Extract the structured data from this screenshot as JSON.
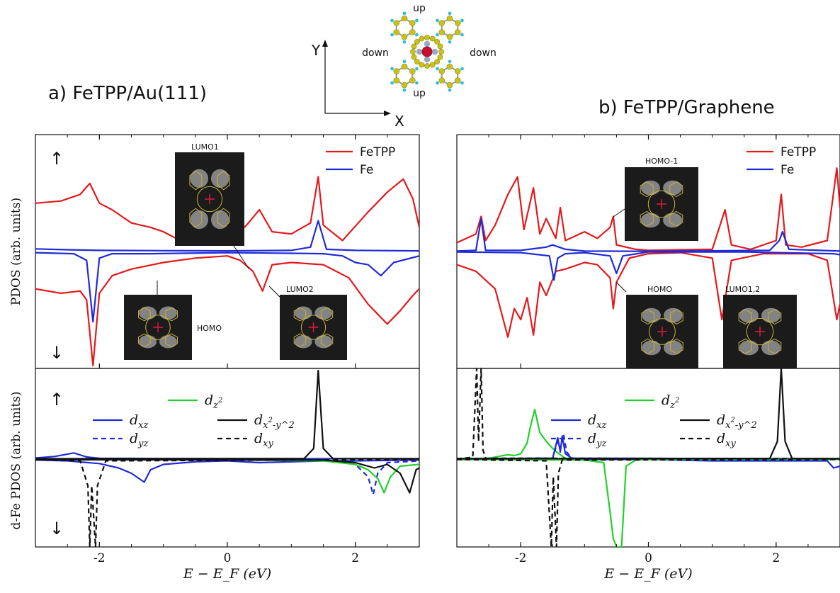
{
  "figure": {
    "molecule_labels": {
      "up_top": "up",
      "up_bottom": "up",
      "down_left": "down",
      "down_right": "down",
      "axis_y": "Y",
      "axis_x": "X"
    },
    "panels": [
      {
        "id": "a",
        "title": "a) FeTPP/Au(111)"
      },
      {
        "id": "b",
        "title": "b) FeTPP/Graphene"
      }
    ]
  },
  "chart_data": [
    {
      "type": "line",
      "panel": "a",
      "title": "a) FeTPP/Au(111)",
      "xlabel": "E − E_F (eV)",
      "ylabel_top": "PDOS (arb. units)",
      "ylabel_bottom": "d-Fe PDOS (arb. units)",
      "xlim": [
        -3,
        3
      ],
      "xticks": [
        "-2",
        "0",
        "2"
      ],
      "spin_labels": {
        "up": "↑",
        "down": "↓"
      },
      "insets": [
        "LUMO1",
        "HOMO",
        "LUMO2"
      ],
      "top": {
        "legend": {
          "position": "top-right",
          "entries": [
            "FeTPP",
            "Fe"
          ]
        },
        "series": [
          {
            "name": "FeTPP",
            "spin": "up",
            "color": "#e31a1c",
            "x": [
              -3,
              -2.6,
              -2.3,
              -2.15,
              -2.0,
              -1.8,
              -1.5,
              -1.2,
              -1.0,
              -0.8,
              -0.5,
              0,
              0.3,
              0.5,
              0.7,
              1.0,
              1.3,
              1.42,
              1.5,
              1.8,
              2.2,
              2.5,
              2.75,
              2.9,
              3
            ],
            "y": [
              2.2,
              2.3,
              2.6,
              3.1,
              2.2,
              1.9,
              1.3,
              1.1,
              0.9,
              0.6,
              0.5,
              0.4,
              1.2,
              1.9,
              0.9,
              0.8,
              1.3,
              3.4,
              1.2,
              0.5,
              1.8,
              2.7,
              3.3,
              2.4,
              1.1
            ]
          },
          {
            "name": "FeTPP",
            "spin": "down",
            "color": "#e31a1c",
            "x": [
              -3,
              -2.6,
              -2.3,
              -2.2,
              -2.1,
              -2.0,
              -1.8,
              -1.5,
              -1.0,
              -0.5,
              0,
              0.2,
              0.4,
              0.55,
              0.7,
              1.0,
              1.5,
              1.9,
              2.2,
              2.5,
              2.7,
              2.9,
              3
            ],
            "y": [
              -1.7,
              -1.9,
              -1.8,
              -2.2,
              -5.2,
              -1.9,
              -1.1,
              -0.8,
              -0.5,
              -0.3,
              -0.2,
              -0.4,
              -0.9,
              -1.8,
              -0.6,
              -0.5,
              -0.6,
              -1.2,
              -2.4,
              -3.3,
              -2.7,
              -2.0,
              -1.7
            ]
          },
          {
            "name": "Fe",
            "spin": "up",
            "color": "#1f2bd6",
            "x": [
              -3,
              -2.5,
              -2.0,
              -1.0,
              0,
              1.0,
              1.3,
              1.42,
              1.55,
              2.0,
              3
            ],
            "y": [
              0.12,
              0.08,
              0.05,
              0.04,
              0.03,
              0.05,
              0.2,
              1.4,
              0.1,
              0.05,
              0.03
            ]
          },
          {
            "name": "Fe",
            "spin": "down",
            "color": "#1f2bd6",
            "x": [
              -3,
              -2.4,
              -2.2,
              -2.1,
              -2.0,
              -1.8,
              -1.2,
              0,
              1.0,
              1.5,
              1.8,
              2.0,
              2.2,
              2.4,
              2.6,
              3
            ],
            "y": [
              -0.05,
              -0.1,
              -0.4,
              -3.2,
              -0.3,
              -0.1,
              -0.1,
              -0.05,
              -0.08,
              -0.1,
              -0.2,
              -0.5,
              -0.6,
              -1.1,
              -0.5,
              -0.2
            ]
          }
        ]
      },
      "bottom": {
        "legend": {
          "position": "top-center",
          "entries": [
            "d_{z^2}",
            "d_{xz}",
            "d_{x^2-y^2}",
            "d_{yz}",
            "d_{xy}"
          ]
        },
        "series": [
          {
            "name": "d_xz",
            "spin": "up",
            "color": "#1f2bd6",
            "dash": "solid",
            "x": [
              -3,
              -2.7,
              -2.4,
              -2.2,
              -2.0,
              -1.5,
              -1.0,
              0,
              1,
              2,
              3
            ],
            "y": [
              0.06,
              0.15,
              0.35,
              0.12,
              0.05,
              0.04,
              0.03,
              0.02,
              0.02,
              0.02,
              0.02
            ]
          },
          {
            "name": "d_xz",
            "spin": "down",
            "color": "#1f2bd6",
            "dash": "solid",
            "x": [
              -3,
              -2.5,
              -2.0,
              -1.7,
              -1.5,
              -1.3,
              -1.2,
              -1.0,
              -0.5,
              0,
              0.5,
              1.5,
              2.0,
              3
            ],
            "y": [
              -0.05,
              -0.1,
              -0.25,
              -0.5,
              -0.8,
              -1.3,
              -0.6,
              -0.3,
              -0.15,
              -0.1,
              -0.2,
              -0.1,
              -0.1,
              -0.05
            ]
          },
          {
            "name": "d_yz",
            "spin": "down",
            "color": "#1f2bd6",
            "dash": "dashed",
            "x": [
              -3,
              0,
              1.5,
              2.0,
              2.2,
              2.28,
              2.35,
              2.5,
              3
            ],
            "y": [
              -0.03,
              -0.03,
              -0.05,
              -0.3,
              -1.0,
              -2.0,
              -0.8,
              -0.2,
              -0.1
            ]
          },
          {
            "name": "d_z2",
            "spin": "down",
            "color": "#22d12a",
            "dash": "solid",
            "x": [
              0.3,
              1.0,
              1.5,
              2.0,
              2.2,
              2.35,
              2.45,
              2.55,
              2.7,
              3
            ],
            "y": [
              -0.05,
              -0.08,
              -0.1,
              -0.3,
              -0.6,
              -1.1,
              -1.9,
              -1.0,
              -0.4,
              -0.3
            ]
          },
          {
            "name": "d_x2-y2",
            "spin": "up",
            "color": "#111111",
            "dash": "solid",
            "x": [
              -3,
              1.2,
              1.35,
              1.42,
              1.5,
              1.65,
              3
            ],
            "y": [
              0.02,
              0.03,
              0.6,
              5.0,
              0.6,
              0.03,
              0.02
            ]
          },
          {
            "name": "d_x2-y2",
            "spin": "down",
            "color": "#111111",
            "dash": "solid",
            "x": [
              -3,
              1.5,
              2.0,
              2.3,
              2.5,
              2.7,
              2.85,
              2.95,
              3
            ],
            "y": [
              -0.03,
              -0.05,
              -0.2,
              -0.5,
              -0.3,
              -0.8,
              -1.9,
              -0.6,
              -0.5
            ]
          },
          {
            "name": "d_xy",
            "spin": "down",
            "color": "#111111",
            "dash": "dashed",
            "x": [
              -3,
              -2.3,
              -2.18,
              -2.15,
              -2.12,
              -2.06,
              -2.03,
              -1.9,
              3
            ],
            "y": [
              -0.02,
              -0.1,
              -1.5,
              -6.0,
              -1.5,
              -6.0,
              -1.5,
              -0.1,
              -0.02
            ]
          }
        ]
      }
    },
    {
      "type": "line",
      "panel": "b",
      "title": "b) FeTPP/Graphene",
      "xlabel": "E − E_F (eV)",
      "xlim": [
        -3,
        3
      ],
      "xticks": [
        "-2",
        "0",
        "2"
      ],
      "insets": [
        "HOMO-1",
        "HOMO",
        "LUMO1,2"
      ],
      "top": {
        "legend": {
          "position": "top-right",
          "entries": [
            "FeTPP",
            "Fe"
          ]
        },
        "series": [
          {
            "name": "FeTPP",
            "spin": "up",
            "color": "#e31a1c",
            "x": [
              -3,
              -2.7,
              -2.62,
              -2.55,
              -2.4,
              -2.2,
              -2.05,
              -1.95,
              -1.8,
              -1.7,
              -1.6,
              -1.45,
              -1.38,
              -1.3,
              -1.0,
              -0.8,
              -0.6,
              -0.55,
              -0.5,
              -0.2,
              0,
              1.0,
              1.2,
              1.3,
              1.6,
              2.0,
              2.08,
              2.15,
              2.4,
              2.8,
              2.95,
              3
            ],
            "y": [
              0.4,
              0.8,
              1.6,
              0.5,
              1.2,
              2.6,
              3.4,
              1.0,
              2.9,
              0.8,
              1.5,
              0.6,
              2.0,
              0.5,
              0.9,
              0.6,
              1.1,
              1.6,
              0.3,
              0.1,
              0.05,
              0.1,
              1.9,
              0.3,
              0.1,
              0.5,
              2.6,
              0.3,
              0.2,
              0.5,
              3.8,
              2.0
            ]
          },
          {
            "name": "FeTPP",
            "spin": "down",
            "color": "#e31a1c",
            "x": [
              -3,
              -2.7,
              -2.4,
              -2.2,
              -2.1,
              -2.0,
              -1.9,
              -1.8,
              -1.7,
              -1.6,
              -1.45,
              -1.3,
              -1.0,
              -0.8,
              -0.6,
              -0.55,
              -0.5,
              -0.3,
              0,
              0.5,
              1.0,
              1.15,
              1.3,
              1.8,
              2.5,
              2.8,
              2.95,
              3
            ],
            "y": [
              -0.6,
              -0.9,
              -1.7,
              -3.9,
              -2.6,
              -3.1,
              -2.1,
              -3.8,
              -1.4,
              -2.0,
              -0.9,
              -0.8,
              -0.5,
              -0.6,
              -1.2,
              -2.6,
              -1.4,
              -0.3,
              -0.1,
              -0.05,
              -0.3,
              -3.1,
              -0.4,
              -0.1,
              -0.1,
              -0.4,
              -3.1,
              -2.4
            ]
          },
          {
            "name": "Fe",
            "spin": "up",
            "color": "#1f2bd6",
            "x": [
              -3,
              -2.7,
              -2.62,
              -2.55,
              -2.0,
              -1.6,
              -1.5,
              -1.4,
              -1.3,
              -1.0,
              0,
              1.9,
              2.05,
              2.1,
              2.2,
              3
            ],
            "y": [
              0.02,
              0.05,
              1.5,
              0.05,
              0.05,
              0.2,
              0.3,
              0.2,
              0.1,
              0.02,
              0.01,
              0.05,
              0.5,
              0.9,
              0.1,
              0.02
            ]
          },
          {
            "name": "Fe",
            "spin": "down",
            "color": "#1f2bd6",
            "x": [
              -3,
              -2.0,
              -1.55,
              -1.48,
              -1.42,
              -1.3,
              -1.0,
              -0.6,
              -0.55,
              -0.5,
              -0.4,
              0,
              1.5,
              2.9,
              3
            ],
            "y": [
              -0.02,
              -0.05,
              -0.2,
              -1.3,
              -0.3,
              -0.1,
              -0.05,
              -0.2,
              -0.6,
              -1.0,
              -0.2,
              -0.02,
              -0.02,
              -0.1,
              -0.15
            ]
          }
        ]
      },
      "bottom": {
        "legend": {
          "position": "top-center",
          "entries": [
            "d_{z^2}",
            "d_{xz}",
            "d_{x^2-y^2}",
            "d_{yz}",
            "d_{xy}"
          ]
        },
        "series": [
          {
            "name": "d_z2",
            "spin": "up",
            "color": "#22d12a",
            "dash": "solid",
            "x": [
              -3,
              -2.5,
              -2.2,
              -2.1,
              -2.0,
              -1.9,
              -1.85,
              -1.78,
              -1.7,
              -1.6,
              -1.5,
              -1.4,
              -1.3,
              3
            ],
            "y": [
              0.02,
              0.05,
              0.25,
              0.2,
              0.3,
              0.9,
              1.8,
              2.8,
              1.5,
              1.0,
              0.6,
              0.3,
              0.05,
              0.02
            ]
          },
          {
            "name": "d_xz",
            "spin": "up",
            "color": "#1f2bd6",
            "dash": "solid",
            "x": [
              -3,
              -1.5,
              -1.42,
              -1.38,
              -1.35,
              -1.3,
              -1.2,
              3
            ],
            "y": [
              0.02,
              0.05,
              1.2,
              0.4,
              1.3,
              0.3,
              0.05,
              0.02
            ]
          },
          {
            "name": "d_yz",
            "spin": "up",
            "color": "#1f2bd6",
            "dash": "dashed",
            "x": [
              -3,
              -1.5,
              -1.42,
              -1.38,
              -1.33,
              -1.28,
              -1.2,
              3
            ],
            "y": [
              0.02,
              0.05,
              1.0,
              0.6,
              1.4,
              0.4,
              0.05,
              0.02
            ]
          },
          {
            "name": "d_xz",
            "spin": "down",
            "color": "#1f2bd6",
            "dash": "solid",
            "x": [
              -3,
              0,
              1.0,
              2.8,
              2.9,
              3
            ],
            "y": [
              -0.02,
              -0.02,
              -0.1,
              -0.1,
              -0.5,
              -0.4
            ]
          },
          {
            "name": "d_z2",
            "spin": "down",
            "color": "#22d12a",
            "dash": "solid",
            "x": [
              -3,
              -1.0,
              -0.7,
              -0.6,
              -0.55,
              -0.5,
              -0.47,
              -0.42,
              -0.35,
              -0.2,
              0,
              3
            ],
            "y": [
              -0.02,
              -0.05,
              -0.2,
              -3.0,
              -4.5,
              -6.0,
              -5.5,
              -6.0,
              -0.4,
              -0.05,
              -0.02,
              -0.02
            ]
          },
          {
            "name": "d_x2-y2",
            "spin": "up",
            "color": "#111111",
            "dash": "solid",
            "x": [
              -3,
              1.9,
              2.02,
              2.08,
              2.14,
              2.25,
              3
            ],
            "y": [
              0.02,
              0.03,
              1.0,
              6.0,
              1.0,
              0.03,
              0.02
            ]
          },
          {
            "name": "d_xy",
            "spin": "up",
            "color": "#111111",
            "dash": "dashed",
            "x": [
              -3,
              -2.75,
              -2.69,
              -2.66,
              -2.62,
              -2.59,
              -2.55,
              3
            ],
            "y": [
              0.02,
              0.1,
              6.0,
              1.0,
              6.0,
              0.5,
              0.05,
              0.02
            ]
          },
          {
            "name": "d_xy",
            "spin": "down",
            "color": "#111111",
            "dash": "dashed",
            "x": [
              -3,
              -1.6,
              -1.52,
              -1.49,
              -1.44,
              -1.41,
              -1.35,
              3
            ],
            "y": [
              -0.02,
              -0.1,
              -6.0,
              -1.0,
              -6.0,
              -0.8,
              -0.05,
              -0.02
            ]
          }
        ]
      }
    }
  ]
}
